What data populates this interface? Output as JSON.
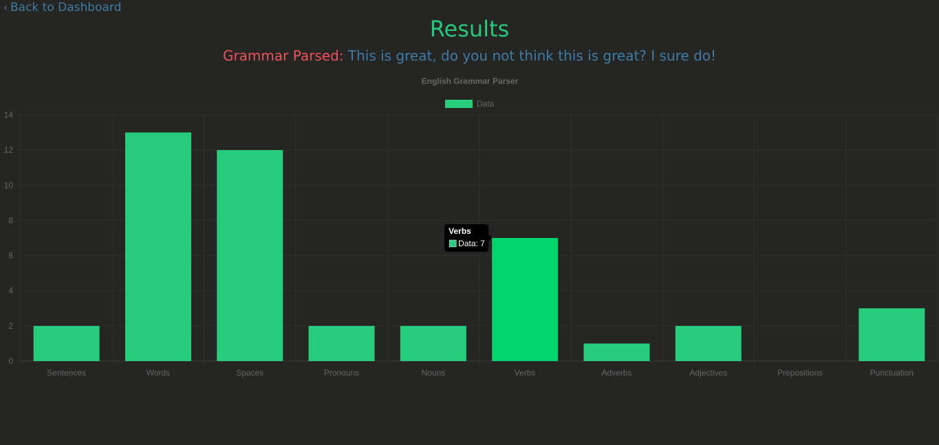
{
  "nav": {
    "back_label": "Back to Dashboard"
  },
  "header": {
    "title": "Results",
    "parsed_label": "Grammar Parsed:",
    "parsed_text": "This is great, do you not think this is great? I sure do!"
  },
  "colors": {
    "title": "#27c77a",
    "parsed_label": "#f0525a",
    "parsed_text": "#3f7ba6",
    "bar": "#27cc7d",
    "bar_hover": "#00d46d",
    "background": "#252523"
  },
  "chart_data": {
    "type": "bar",
    "title": "English Grammar Parser",
    "categories": [
      "Sentences",
      "Words",
      "Spaces",
      "Pronouns",
      "Nouns",
      "Verbs",
      "Adverbs",
      "Adjectives",
      "Prepositions",
      "Punctuation"
    ],
    "series": [
      {
        "name": "Data",
        "values": [
          2,
          13,
          12,
          2,
          2,
          7,
          1,
          2,
          0,
          3
        ]
      }
    ],
    "ylim": [
      0,
      14
    ],
    "yticks": [
      0,
      2,
      4,
      6,
      8,
      10,
      12,
      14
    ],
    "grid": true,
    "legend": "top-center",
    "tooltip": {
      "category": "Verbs",
      "label": "Data: 7"
    }
  }
}
